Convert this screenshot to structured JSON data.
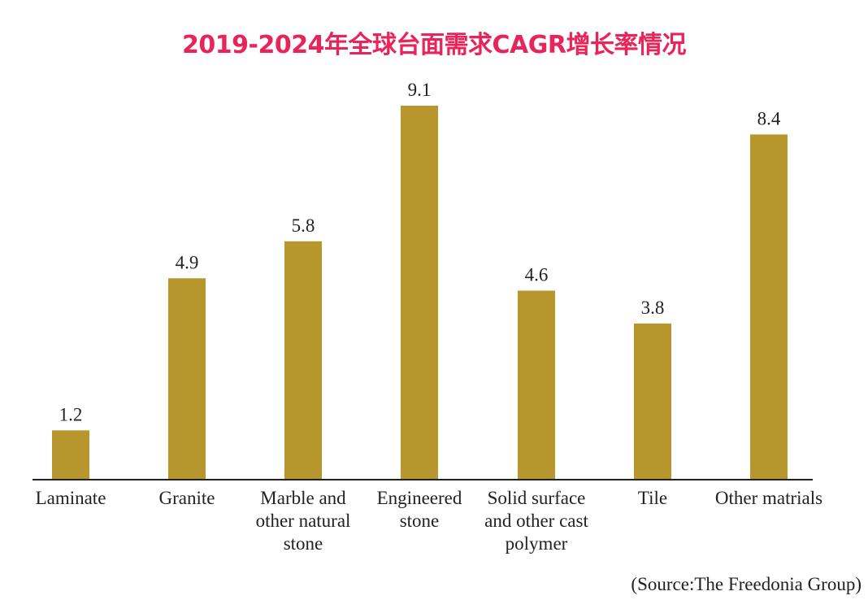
{
  "colors": {
    "title": "#e8245a",
    "bar": "#b8962e",
    "axis": "#222222",
    "text": "#222222"
  },
  "chart_data": {
    "type": "bar",
    "title": "2019-2024年全球台面需求CAGR增长率情况",
    "categories": [
      [
        "Laminate"
      ],
      [
        "Granite"
      ],
      [
        "Marble and",
        "other natural",
        "stone"
      ],
      [
        "Engineered",
        "stone"
      ],
      [
        "Solid surface",
        "and other cast",
        "polymer"
      ],
      [
        "Tile"
      ],
      [
        "Other matrials"
      ]
    ],
    "values": [
      1.2,
      4.9,
      5.8,
      9.1,
      4.6,
      3.8,
      8.4
    ],
    "value_labels": [
      "1.2",
      "4.9",
      "5.8",
      "9.1",
      "4.6",
      "3.8",
      "8.4"
    ],
    "xlabel": "",
    "ylabel": "",
    "ylim": [
      0,
      9.1
    ],
    "grid": false,
    "legend": "none"
  },
  "source": "(Source:The Freedonia Group)"
}
